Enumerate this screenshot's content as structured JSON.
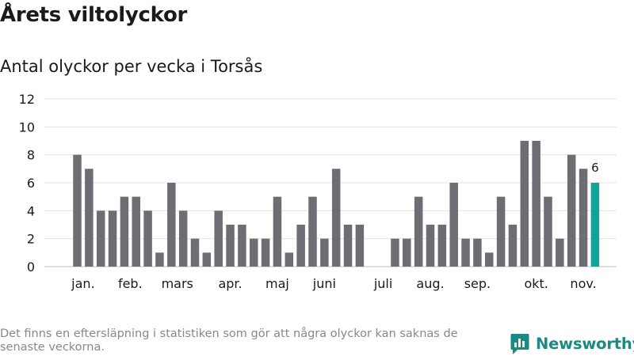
{
  "title": "Årets viltolyckor",
  "subtitle": "Antal olyckor per vecka i Torsås",
  "footnote": "Det finns en eftersläpning i statistiken som gör att några olyckor kan saknas de senaste veckorna.",
  "brand": {
    "name": "Newsworthy",
    "color": "#1a8a83"
  },
  "colors": {
    "bar": "#6e6d74",
    "highlight": "#13a39b",
    "grid": "#e3e3e3",
    "axis_text": "#1a1a1a"
  },
  "chart_data": {
    "type": "bar",
    "title": "Antal olyckor per vecka i Torsås",
    "xlabel": "",
    "ylabel": "",
    "x_unit": "week",
    "x": [
      1,
      2,
      3,
      4,
      5,
      6,
      7,
      8,
      9,
      10,
      11,
      12,
      13,
      14,
      15,
      16,
      17,
      18,
      19,
      20,
      21,
      22,
      23,
      24,
      25,
      26,
      27,
      28,
      29,
      30,
      31,
      32,
      33,
      34,
      35,
      36,
      37,
      38,
      39,
      40,
      41,
      42,
      43,
      44,
      45,
      46
    ],
    "values": [
      8,
      7,
      4,
      4,
      5,
      5,
      4,
      1,
      6,
      4,
      2,
      1,
      4,
      3,
      3,
      2,
      2,
      5,
      1,
      3,
      5,
      2,
      7,
      3,
      3,
      0,
      0,
      2,
      2,
      5,
      3,
      3,
      6,
      2,
      2,
      1,
      5,
      3,
      9,
      9,
      5,
      2,
      8,
      7,
      6,
      null
    ],
    "highlight": {
      "x": 45,
      "value": 6,
      "label": "6"
    },
    "x_ticks": [
      {
        "label": "jan.",
        "x": 1.5
      },
      {
        "label": "feb.",
        "x": 5.5
      },
      {
        "label": "mars",
        "x": 9.5
      },
      {
        "label": "apr.",
        "x": 14
      },
      {
        "label": "maj",
        "x": 18
      },
      {
        "label": "juni",
        "x": 22
      },
      {
        "label": "juli",
        "x": 27
      },
      {
        "label": "aug.",
        "x": 31
      },
      {
        "label": "sep.",
        "x": 35
      },
      {
        "label": "okt.",
        "x": 40
      },
      {
        "label": "nov.",
        "x": 44
      }
    ],
    "y_ticks": [
      0,
      2,
      4,
      6,
      8,
      10,
      12
    ],
    "ylim": [
      0,
      12
    ],
    "grid": true,
    "legend": false
  }
}
